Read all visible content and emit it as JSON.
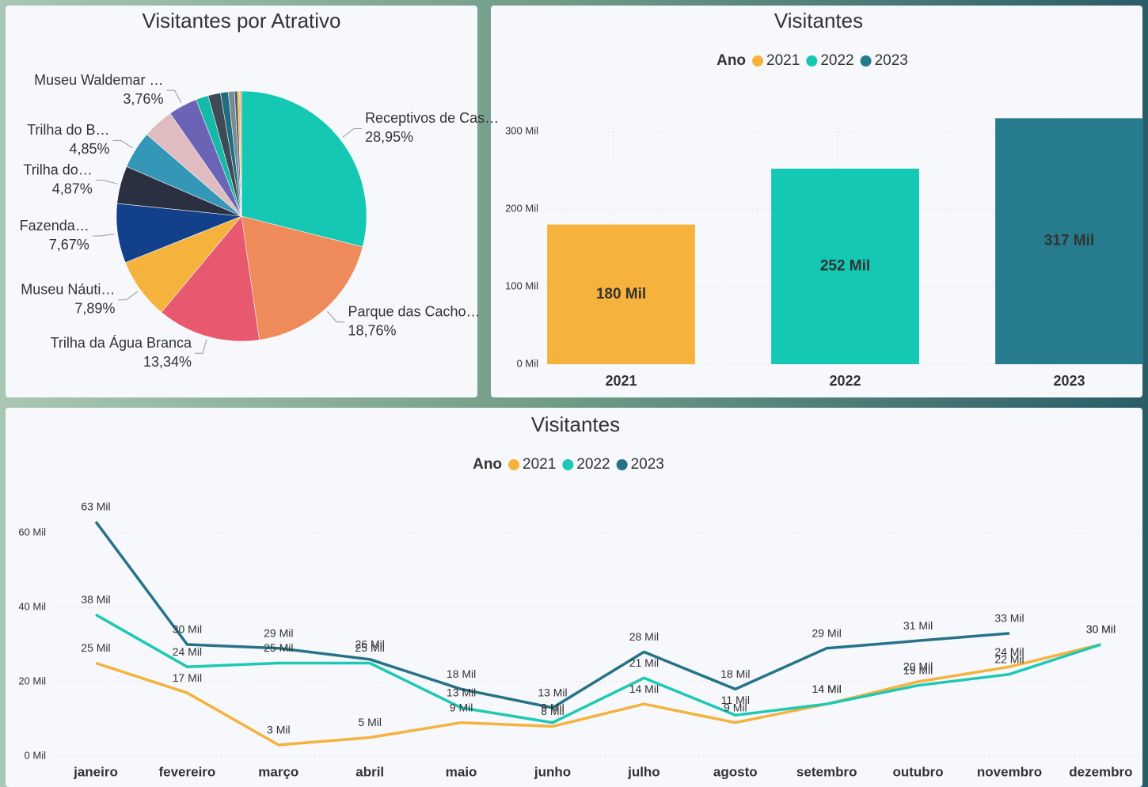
{
  "chart_data": [
    {
      "type": "pie",
      "title": "Visitantes por Atrativo",
      "categories": [
        "Receptivos de Cas…",
        "Parque das Cacho…",
        "Trilha da Água Branca",
        "Museu Náuti…",
        "Fazenda…",
        "Trilha do…",
        "Trilha do B…",
        null,
        "Museu Waldemar …",
        null,
        null,
        null,
        null,
        null,
        null,
        null
      ],
      "values": [
        28.95,
        18.76,
        13.34,
        7.89,
        7.67,
        4.87,
        4.85,
        4.0,
        3.76,
        1.6,
        1.6,
        1.0,
        0.8,
        0.4,
        0.3,
        0.2
      ],
      "value_labels": [
        "28,95%",
        "18,76%",
        "13,34%",
        "7,89%",
        "7,67%",
        "4,87%",
        "4,85%",
        null,
        "3,76%",
        null,
        null,
        null,
        null,
        null,
        null,
        null
      ],
      "colors": [
        "#14c8b4",
        "#ef8b5b",
        "#e8586e",
        "#f5b23c",
        "#12408a",
        "#2b3040",
        "#3597b8",
        "#e0bcc0",
        "#6b63b5",
        "#16b8a8",
        "#3e4a55",
        "#1f6d7d",
        "#7b8a95",
        "#4d5f7a",
        "#f5c542",
        "#f09060"
      ]
    },
    {
      "type": "bar",
      "title": "Visitantes",
      "legend_title": "Ano",
      "categories": [
        "2021",
        "2022",
        "2023"
      ],
      "series": [
        {
          "name": "2021",
          "color": "#f5b23c",
          "values": [
            180,
            null,
            null
          ],
          "value_labels": [
            "180 Mil",
            null,
            null
          ]
        },
        {
          "name": "2022",
          "color": "#14c8b4",
          "values": [
            null,
            252,
            null
          ],
          "value_labels": [
            null,
            "252 Mil",
            null
          ]
        },
        {
          "name": "2023",
          "color": "#267b8c",
          "values": [
            null,
            null,
            317
          ],
          "value_labels": [
            null,
            null,
            "317 Mil"
          ]
        }
      ],
      "ylim": [
        0,
        350
      ],
      "yticks": [
        {
          "value": 0,
          "label": "0 Mil"
        },
        {
          "value": 100,
          "label": "100 Mil"
        },
        {
          "value": 200,
          "label": "200 Mil"
        },
        {
          "value": 300,
          "label": "300 Mil"
        }
      ],
      "grid": true
    },
    {
      "type": "line",
      "title": "Visitantes",
      "legend_title": "Ano",
      "categories": [
        "janeiro",
        "fevereiro",
        "março",
        "abril",
        "maio",
        "junho",
        "julho",
        "agosto",
        "setembro",
        "outubro",
        "novembro",
        "dezembro"
      ],
      "series": [
        {
          "name": "2021",
          "color": "#f5b23c",
          "values": [
            25,
            17,
            3,
            5,
            9,
            8,
            14,
            9,
            14,
            20,
            24,
            30
          ],
          "value_labels": [
            "25 Mil",
            "17 Mil",
            "3 Mil",
            "5 Mil",
            "9 Mil",
            "8 Mil",
            "14 Mil",
            "9 Mil",
            "14 Mil",
            "20 Mil",
            "24 Mil",
            "30 Mil"
          ]
        },
        {
          "name": "2022",
          "color": "#1fc8b4",
          "values": [
            38,
            24,
            25,
            25,
            13,
            9,
            21,
            11,
            14,
            19,
            22,
            30
          ],
          "value_labels": [
            "38 Mil",
            "24 Mil",
            "25 Mil",
            "25 Mil",
            "13 Mil",
            "9 Mil",
            "21 Mil",
            "11 Mil",
            "14 Mil",
            "19 Mil",
            "22 Mil",
            "30 Mil"
          ]
        },
        {
          "name": "2023",
          "color": "#267388",
          "values": [
            63,
            30,
            29,
            26,
            18,
            13,
            28,
            18,
            29,
            31,
            33,
            null
          ],
          "value_labels": [
            "63 Mil",
            "30 Mil",
            "29 Mil",
            "26 Mil",
            "18 Mil",
            "13 Mil",
            "28 Mil",
            "18 Mil",
            "29 Mil",
            "31 Mil",
            "33 Mil",
            null
          ]
        }
      ],
      "ylim": [
        0,
        70
      ],
      "yticks": [
        {
          "value": 0,
          "label": "0 Mil"
        },
        {
          "value": 20,
          "label": "20 Mil"
        },
        {
          "value": 40,
          "label": "40 Mil"
        },
        {
          "value": 60,
          "label": "60 Mil"
        }
      ],
      "grid": true
    }
  ]
}
